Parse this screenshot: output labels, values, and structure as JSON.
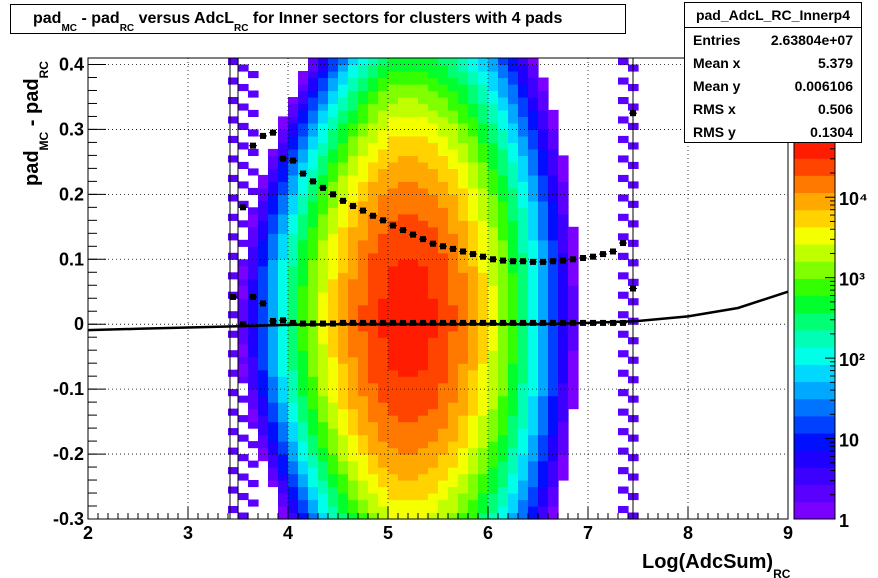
{
  "chart_data": {
    "type": "heatmap",
    "title": {
      "text": "pad - pad versus AdcL for Inner sectors for clusters with 4 pads",
      "parts": [
        "pad",
        "MC",
        " - pad",
        "RC",
        " versus AdcL",
        "RC",
        " for Inner sectors for clusters with 4 pads"
      ]
    },
    "xlabel": {
      "main": "Log(AdcSum)",
      "sub": "RC"
    },
    "ylabel": {
      "main": "pad",
      "sub1": "MC",
      "mid": " - pad",
      "sub2": "RC"
    },
    "xlim": [
      2,
      9
    ],
    "ylim": [
      -0.3,
      0.41
    ],
    "xticks": [
      "2",
      "3",
      "4",
      "5",
      "6",
      "7",
      "8",
      "9"
    ],
    "yticks": [
      "-0.3",
      "-0.2",
      "-0.1",
      "0",
      "0.1",
      "0.2",
      "0.3",
      "0.4"
    ],
    "grid": true,
    "colorbar": {
      "scale": "log",
      "range": [
        1,
        50000
      ],
      "ticks": [
        "1",
        "10",
        "10²",
        "10³",
        "10⁴"
      ]
    },
    "profile_mean": {
      "x": [
        3.45,
        3.55,
        3.65,
        3.75,
        3.85,
        3.95,
        4.05,
        4.15,
        4.25,
        4.35,
        4.45,
        4.55,
        4.65,
        4.75,
        4.85,
        4.95,
        5.05,
        5.15,
        5.25,
        5.35,
        5.45,
        5.55,
        5.65,
        5.75,
        5.85,
        5.95,
        6.05,
        6.15,
        6.25,
        6.35,
        6.45,
        6.55,
        6.65,
        6.75,
        6.85,
        6.95,
        7.05,
        7.15,
        7.25,
        7.35,
        7.45
      ],
      "y": [
        0.042,
        0.0,
        0.042,
        0.032,
        0.005,
        0.006,
        0.002,
        0.001,
        0.001,
        0.001,
        0.001,
        0.002,
        0.002,
        0.002,
        0.002,
        0.002,
        0.002,
        0.002,
        0.002,
        0.002,
        0.002,
        0.002,
        0.002,
        0.002,
        0.002,
        0.002,
        0.002,
        0.002,
        0.002,
        0.002,
        0.002,
        0.002,
        0.002,
        0.002,
        0.002,
        0.002,
        0.002,
        0.002,
        0.002,
        0.002,
        0.055
      ]
    },
    "profile_rms": {
      "x": [
        3.55,
        3.65,
        3.75,
        3.85,
        3.95,
        4.05,
        4.15,
        4.25,
        4.35,
        4.45,
        4.55,
        4.65,
        4.75,
        4.85,
        4.95,
        5.05,
        5.15,
        5.25,
        5.35,
        5.45,
        5.55,
        5.65,
        5.75,
        5.85,
        5.95,
        6.05,
        6.15,
        6.25,
        6.35,
        6.45,
        6.55,
        6.65,
        6.75,
        6.85,
        6.95,
        7.05,
        7.15,
        7.25,
        7.35,
        7.45
      ],
      "y": [
        0.18,
        0.275,
        0.29,
        0.295,
        0.255,
        0.252,
        0.232,
        0.22,
        0.21,
        0.2,
        0.19,
        0.182,
        0.175,
        0.167,
        0.16,
        0.152,
        0.145,
        0.138,
        0.131,
        0.124,
        0.12,
        0.116,
        0.112,
        0.108,
        0.104,
        0.1,
        0.098,
        0.097,
        0.097,
        0.096,
        0.096,
        0.097,
        0.098,
        0.1,
        0.102,
        0.104,
        0.108,
        0.112,
        0.125,
        0.325
      ]
    },
    "fit_curve": {
      "x": [
        2.0,
        2.5,
        3.0,
        3.5,
        4.0,
        4.5,
        5.0,
        5.5,
        6.0,
        6.5,
        7.0,
        7.5,
        8.0,
        8.5,
        9.0
      ],
      "y": [
        -0.009,
        -0.007,
        -0.005,
        -0.003,
        -0.001,
        0.0,
        0.0,
        0.0,
        0.0,
        0.0,
        0.002,
        0.005,
        0.012,
        0.025,
        0.05
      ]
    }
  },
  "stats": {
    "name": "pad_AdcL_RC_Innerp4",
    "rows": [
      {
        "label": "Entries",
        "value": "2.63804e+07"
      },
      {
        "label": "Mean x",
        "value": "5.379"
      },
      {
        "label": "Mean y",
        "value": "0.006106"
      },
      {
        "label": "RMS x",
        "value": "0.506"
      },
      {
        "label": "RMS y",
        "value": "0.1304"
      }
    ]
  }
}
